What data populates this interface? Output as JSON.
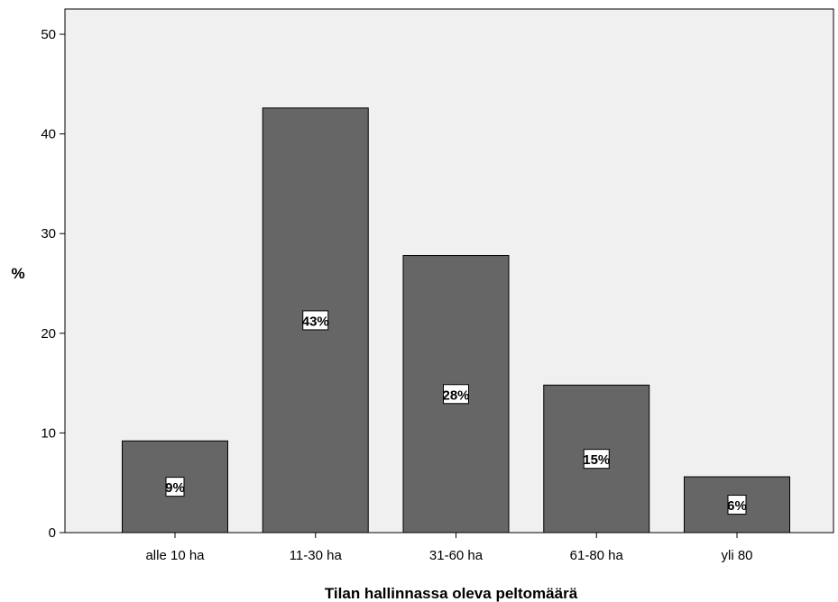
{
  "chart_data": {
    "type": "bar",
    "categories": [
      "alle 10 ha",
      "11-30 ha",
      "31-60 ha",
      "61-80 ha",
      "yli 80"
    ],
    "values": [
      9.2,
      42.6,
      27.8,
      14.8,
      5.6
    ],
    "data_labels": [
      "9%",
      "43%",
      "28%",
      "15%",
      "6%"
    ],
    "title": "",
    "xlabel": "Tilan hallinnassa oleva peltomäärä",
    "ylabel": "%",
    "ylim": [
      0,
      50
    ],
    "yticks": [
      0,
      10,
      20,
      30,
      40,
      50
    ],
    "grid": false,
    "legend": "none",
    "colors": {
      "plot_background": "#f0f0f0",
      "bar_fill": "#666666",
      "bar_stroke": "#000000",
      "label_box": "#ffffff"
    }
  }
}
